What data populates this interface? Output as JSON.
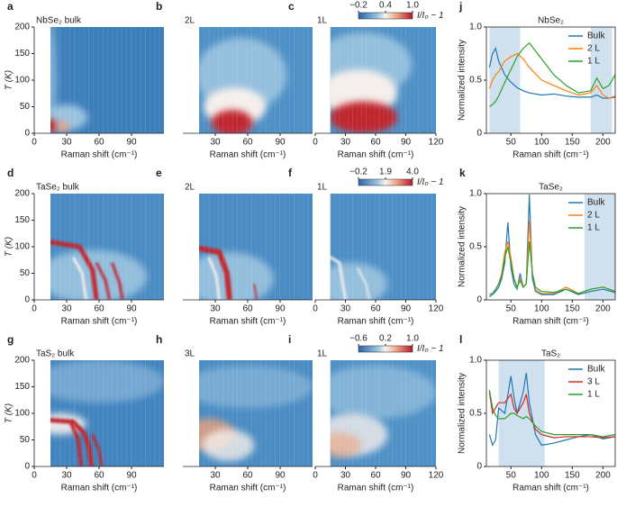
{
  "chart_data": [
    {
      "type": "heatmap",
      "panel": "a",
      "label": "NbSe₂ bulk",
      "xlabel": "Raman shift (cm⁻¹)",
      "ylabel": "T (K)",
      "xlim": [
        0,
        120
      ],
      "ylim": [
        0,
        200
      ],
      "xticks": [
        0,
        30,
        60,
        90
      ],
      "yticks": [
        0,
        50,
        100,
        150,
        200
      ]
    },
    {
      "type": "heatmap",
      "panel": "b",
      "label": "2L",
      "xlabel": "Raman shift (cm⁻¹)",
      "xlim": [
        0,
        120
      ],
      "ylim": [
        0,
        200
      ],
      "xticks": [
        30,
        60,
        90
      ]
    },
    {
      "type": "heatmap",
      "panel": "c",
      "label": "1L",
      "xlabel": "Raman shift (cm⁻¹)",
      "xlim": [
        0,
        120
      ],
      "ylim": [
        0,
        200
      ],
      "xticks": [
        0,
        30,
        60,
        90,
        120
      ],
      "colorbar": {
        "ticks": [
          {
            "value": -0.2,
            "label": "−0.2"
          },
          0.4,
          {
            "value": 1,
            "label": "1.0"
          }
        ],
        "label": "I/I₀ − 1"
      }
    },
    {
      "type": "line",
      "panel": "j",
      "title": "NbSe₂",
      "xlabel": "Raman shift (cm⁻¹)",
      "ylabel": "Normalized intensity",
      "xlim": [
        10,
        220
      ],
      "ylim": [
        0,
        1
      ],
      "xticks": [
        50,
        100,
        150,
        200
      ],
      "yticks": [
        0,
        0.5,
        {
          "value": 1,
          "label": "1.0"
        }
      ],
      "shaded": [
        [
          15,
          65
        ],
        [
          180,
          215
        ]
      ],
      "x": [
        15,
        20,
        25,
        30,
        40,
        50,
        60,
        70,
        80,
        100,
        120,
        140,
        160,
        180,
        190,
        200,
        210,
        220
      ],
      "series": [
        {
          "name": "Bulk",
          "color": "#1f77b4",
          "values": [
            0.62,
            0.75,
            0.8,
            0.68,
            0.55,
            0.48,
            0.43,
            0.4,
            0.38,
            0.36,
            0.37,
            0.35,
            0.34,
            0.34,
            0.36,
            0.33,
            0.33,
            0.34
          ]
        },
        {
          "name": "2 L",
          "color": "#ff7f0e",
          "values": [
            0.42,
            0.5,
            0.55,
            0.58,
            0.68,
            0.72,
            0.75,
            0.7,
            0.62,
            0.5,
            0.45,
            0.4,
            0.36,
            0.38,
            0.45,
            0.36,
            0.33,
            0.35
          ]
        },
        {
          "name": "1 L",
          "color": "#2ca02c",
          "values": [
            0.25,
            0.27,
            0.3,
            0.35,
            0.48,
            0.6,
            0.72,
            0.8,
            0.85,
            0.7,
            0.55,
            0.45,
            0.38,
            0.4,
            0.52,
            0.42,
            0.45,
            0.55
          ]
        }
      ]
    },
    {
      "type": "heatmap",
      "panel": "d",
      "label": "TaSe₂ bulk",
      "xlabel": "Raman shift (cm⁻¹)",
      "ylabel": "T (K)",
      "xlim": [
        0,
        120
      ],
      "ylim": [
        0,
        200
      ],
      "xticks": [
        0,
        30,
        60,
        90
      ],
      "yticks": [
        0,
        50,
        100,
        150,
        200
      ]
    },
    {
      "type": "heatmap",
      "panel": "e",
      "label": "2L",
      "xlabel": "Raman shift (cm⁻¹)",
      "xlim": [
        0,
        120
      ],
      "ylim": [
        0,
        200
      ],
      "xticks": [
        30,
        60,
        90
      ]
    },
    {
      "type": "heatmap",
      "panel": "f",
      "label": "1L",
      "xlabel": "Raman shift (cm⁻¹)",
      "xlim": [
        0,
        120
      ],
      "ylim": [
        0,
        200
      ],
      "xticks": [
        0,
        30,
        60,
        90,
        120
      ],
      "colorbar": {
        "ticks": [
          {
            "value": -0.2,
            "label": "−0.2"
          },
          1.9,
          {
            "value": 4,
            "label": "4.0"
          }
        ],
        "label": "I/I₀ − 1"
      }
    },
    {
      "type": "line",
      "panel": "k",
      "title": "TaSe₂",
      "xlabel": "Raman shift (cm⁻¹)",
      "ylabel": "Normalized intensity",
      "xlim": [
        10,
        220
      ],
      "ylim": [
        0,
        1
      ],
      "xticks": [
        50,
        100,
        150,
        200
      ],
      "yticks": [
        0,
        0.5,
        {
          "value": 1,
          "label": "1.0"
        }
      ],
      "shaded": [
        [
          170,
          220
        ]
      ],
      "x": [
        15,
        20,
        25,
        30,
        35,
        40,
        45,
        50,
        55,
        60,
        65,
        70,
        75,
        80,
        85,
        90,
        100,
        120,
        140,
        160,
        180,
        200,
        220
      ],
      "series": [
        {
          "name": "Bulk",
          "color": "#1f77b4",
          "values": [
            0.03,
            0.05,
            0.08,
            0.12,
            0.2,
            0.35,
            0.73,
            0.3,
            0.15,
            0.1,
            0.25,
            0.12,
            0.15,
            0.99,
            0.2,
            0.08,
            0.05,
            0.05,
            0.1,
            0.05,
            0.08,
            0.1,
            0.07
          ]
        },
        {
          "name": "2 L",
          "color": "#ff7f0e",
          "values": [
            0.05,
            0.06,
            0.1,
            0.15,
            0.25,
            0.45,
            0.55,
            0.4,
            0.2,
            0.12,
            0.2,
            0.12,
            0.15,
            0.75,
            0.25,
            0.1,
            0.06,
            0.06,
            0.12,
            0.06,
            0.1,
            0.12,
            0.08
          ]
        },
        {
          "name": "1 L",
          "color": "#2ca02c",
          "values": [
            0.05,
            0.06,
            0.1,
            0.15,
            0.22,
            0.4,
            0.5,
            0.35,
            0.2,
            0.12,
            0.18,
            0.12,
            0.15,
            0.55,
            0.25,
            0.12,
            0.08,
            0.07,
            0.1,
            0.06,
            0.1,
            0.12,
            0.08
          ]
        }
      ]
    },
    {
      "type": "heatmap",
      "panel": "g",
      "label": "TaS₂ bulk",
      "xlabel": "Raman shift (cm⁻¹)",
      "ylabel": "T (K)",
      "xlim": [
        0,
        120
      ],
      "ylim": [
        0,
        200
      ],
      "xticks": [
        0,
        30,
        60,
        90
      ],
      "yticks": [
        0,
        50,
        100,
        150,
        200
      ]
    },
    {
      "type": "heatmap",
      "panel": "h",
      "label": "3L",
      "xlabel": "Raman shift (cm⁻¹)",
      "xlim": [
        0,
        120
      ],
      "ylim": [
        0,
        200
      ],
      "xticks": [
        30,
        60,
        90
      ]
    },
    {
      "type": "heatmap",
      "panel": "i",
      "label": "1L",
      "xlabel": "Raman shift (cm⁻¹)",
      "xlim": [
        0,
        120
      ],
      "ylim": [
        0,
        200
      ],
      "xticks": [
        0,
        30,
        60,
        90,
        120
      ],
      "colorbar": {
        "ticks": [
          {
            "value": -0.6,
            "label": "−0.6"
          },
          0.2,
          {
            "value": 1,
            "label": "1.0"
          }
        ],
        "label": "I/I₀ − 1"
      }
    },
    {
      "type": "line",
      "panel": "l",
      "title": "TaS₂",
      "xlabel": "Raman shift (cm⁻¹)",
      "ylabel": "Normalized intensity",
      "xlim": [
        10,
        220
      ],
      "ylim": [
        0,
        1
      ],
      "xticks": [
        50,
        100,
        150,
        200
      ],
      "yticks": [
        0,
        0.5,
        {
          "value": 1,
          "label": "1.0"
        }
      ],
      "shaded": [
        [
          30,
          105
        ]
      ],
      "x": [
        15,
        20,
        25,
        30,
        40,
        50,
        55,
        60,
        70,
        75,
        80,
        90,
        100,
        120,
        140,
        160,
        180,
        200,
        220
      ],
      "series": [
        {
          "name": "Bulk",
          "color": "#1f77b4",
          "values": [
            0.3,
            0.2,
            0.25,
            0.55,
            0.5,
            0.85,
            0.65,
            0.5,
            0.7,
            0.88,
            0.6,
            0.3,
            0.2,
            0.22,
            0.25,
            0.28,
            0.3,
            0.26,
            0.28
          ]
        },
        {
          "name": "3 L",
          "color": "#d62728",
          "values": [
            0.7,
            0.5,
            0.55,
            0.6,
            0.6,
            0.68,
            0.55,
            0.5,
            0.6,
            0.68,
            0.5,
            0.35,
            0.3,
            0.27,
            0.28,
            0.28,
            0.28,
            0.27,
            0.28
          ]
        },
        {
          "name": "1 L",
          "color": "#2ca02c",
          "values": [
            0.72,
            0.55,
            0.48,
            0.45,
            0.45,
            0.5,
            0.5,
            0.48,
            0.45,
            0.47,
            0.45,
            0.38,
            0.33,
            0.3,
            0.3,
            0.3,
            0.3,
            0.28,
            0.3
          ]
        }
      ]
    }
  ]
}
